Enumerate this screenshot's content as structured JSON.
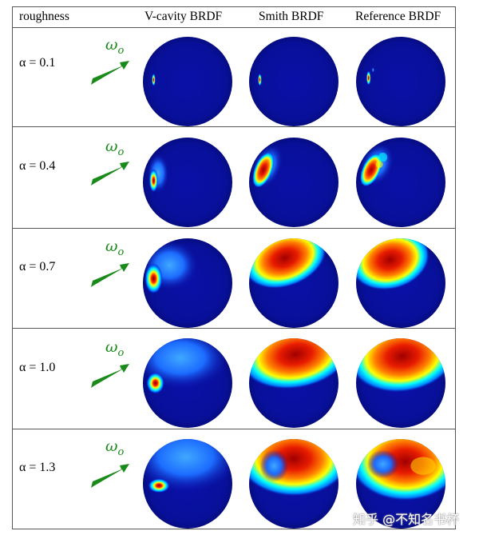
{
  "header": {
    "roughness": "roughness",
    "col_vcavity": "V-cavity BRDF",
    "col_smith": "Smith BRDF",
    "col_reference": "Reference BRDF"
  },
  "rows": [
    {
      "alpha_label": "α = 0.1",
      "omega_label": "ω",
      "omega_sub": "o"
    },
    {
      "alpha_label": "α = 0.4",
      "omega_label": "ω",
      "omega_sub": "o"
    },
    {
      "alpha_label": "α = 0.7",
      "omega_label": "ω",
      "omega_sub": "o"
    },
    {
      "alpha_label": "α = 1.0",
      "omega_label": "ω",
      "omega_sub": "o"
    },
    {
      "alpha_label": "α = 1.3",
      "omega_label": "ω",
      "omega_sub": "o"
    }
  ],
  "colors": {
    "sphere_base": "#0a0f9e",
    "arrow": "#1a8a1a",
    "jet_scale": [
      "#00008f",
      "#0000ff",
      "#00ffff",
      "#ffff00",
      "#ff0000",
      "#800000"
    ]
  },
  "watermark": "知乎 @不知名书杯"
}
